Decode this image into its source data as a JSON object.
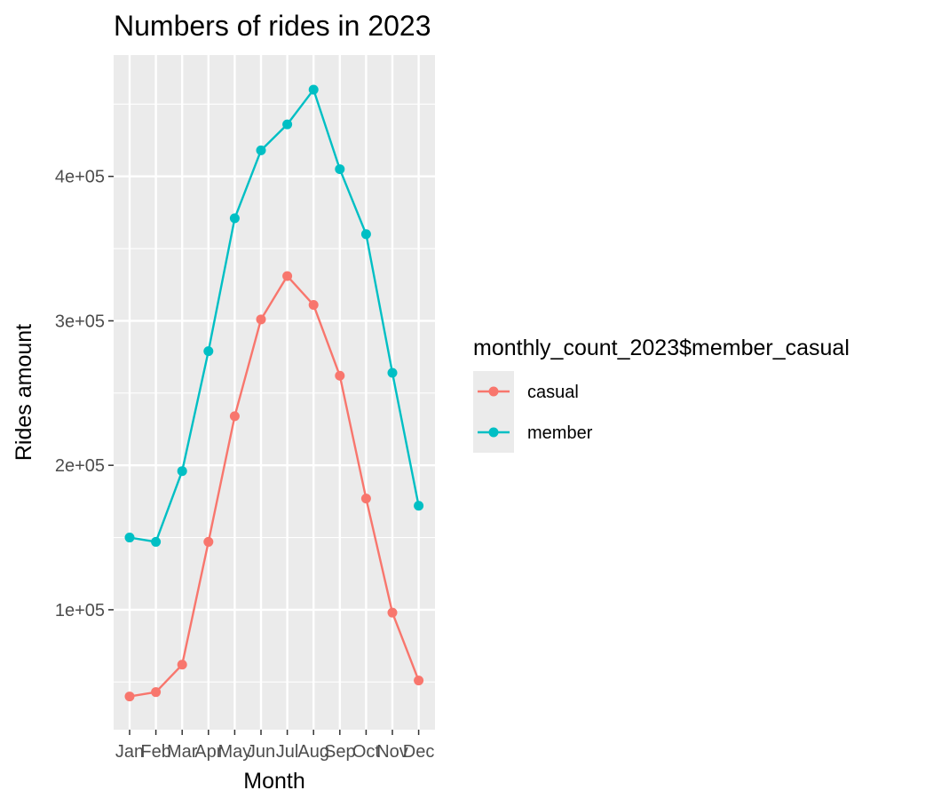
{
  "chart_data": {
    "type": "line",
    "title": "Numbers of rides in 2023",
    "xlabel": "Month",
    "ylabel": "Rides amount",
    "categories": [
      "Jan",
      "Feb",
      "Mar",
      "Apr",
      "May",
      "Jun",
      "Jul",
      "Aug",
      "Sep",
      "Oct",
      "Nov",
      "Dec"
    ],
    "series": [
      {
        "name": "casual",
        "color": "#F8766D",
        "values": [
          40000,
          43000,
          62000,
          147000,
          234000,
          301000,
          331000,
          311000,
          262000,
          177000,
          98000,
          51000
        ]
      },
      {
        "name": "member",
        "color": "#00BFC4",
        "values": [
          150000,
          147000,
          196000,
          279000,
          371000,
          418000,
          436000,
          460000,
          405000,
          360000,
          264000,
          172000
        ]
      }
    ],
    "ylim": [
      17000,
      484000
    ],
    "yticks": [
      100000,
      200000,
      300000,
      400000
    ],
    "ytick_labels": [
      "1e+05",
      "2e+05",
      "3e+05",
      "4e+05"
    ],
    "grid": true,
    "legend": {
      "title": "monthly_count_2023$member_casual",
      "position": "right"
    },
    "panel_background": "#EBEBEB",
    "grid_color": "#FFFFFF"
  }
}
